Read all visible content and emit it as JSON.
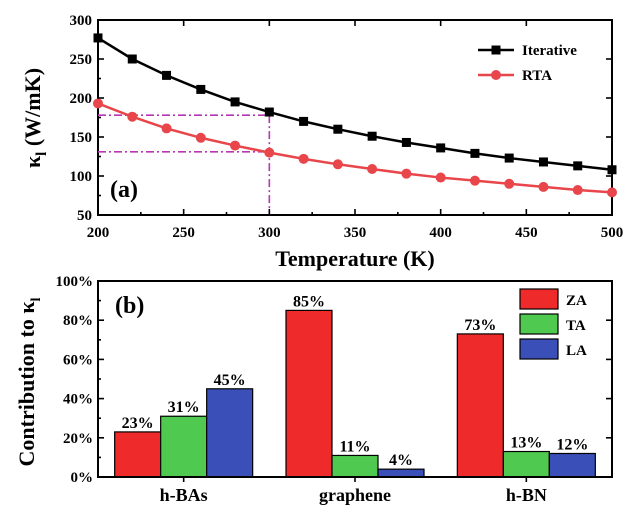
{
  "chart_data": [
    {
      "type": "line",
      "panel_label": "(a)",
      "xlabel": "Temperature (K)",
      "ylabel": "κ",
      "ylabel_subscript": "l",
      "ylabel_unit": " (W/mK)",
      "xlim": [
        200,
        500
      ],
      "ylim": [
        50,
        300
      ],
      "x_ticks": [
        "200",
        "250",
        "300",
        "350",
        "400",
        "450",
        "500"
      ],
      "y_ticks": [
        "50",
        "100",
        "150",
        "200",
        "250",
        "300"
      ],
      "legend_position": "top-right",
      "x": [
        200,
        220,
        240,
        260,
        280,
        300,
        320,
        340,
        360,
        380,
        400,
        420,
        440,
        460,
        480,
        500
      ],
      "series": [
        {
          "name": "Iterative",
          "color": "#000000",
          "marker": "square",
          "values": [
            277,
            250,
            229,
            211,
            195,
            182,
            170,
            160,
            151,
            143,
            136,
            129,
            123,
            118,
            113,
            108
          ]
        },
        {
          "name": "RTA",
          "color": "#e8464a",
          "marker": "circle",
          "values": [
            193,
            176,
            161,
            149,
            139,
            130,
            122,
            115,
            109,
            103,
            98,
            94,
            90,
            86,
            82,
            79
          ]
        }
      ],
      "reference_lines": [
        {
          "x": 300,
          "y_top": 178,
          "y_low": 131,
          "color": "#b636b6",
          "style": "dash-dot"
        }
      ]
    },
    {
      "type": "bar",
      "panel_label": "(b)",
      "ylabel": "Contribution to κ",
      "ylabel_subscript": "l",
      "ylim": [
        0,
        100
      ],
      "y_ticks": [
        "0%",
        "20%",
        "40%",
        "60%",
        "80%",
        "100%"
      ],
      "categories": [
        "h-BAs",
        "graphene",
        "h-BN"
      ],
      "legend_position": "top-right",
      "series": [
        {
          "name": "ZA",
          "color": "#ee2a2a",
          "values": [
            23,
            85,
            73
          ],
          "labels": [
            "23%",
            "85%",
            "73%"
          ]
        },
        {
          "name": "TA",
          "color": "#4fc94f",
          "values": [
            31,
            11,
            13
          ],
          "labels": [
            "31%",
            "11%",
            "13%"
          ]
        },
        {
          "name": "LA",
          "color": "#3a4fb8",
          "values": [
            45,
            4,
            12
          ],
          "labels": [
            "45%",
            "4%",
            "12%"
          ]
        }
      ]
    }
  ]
}
